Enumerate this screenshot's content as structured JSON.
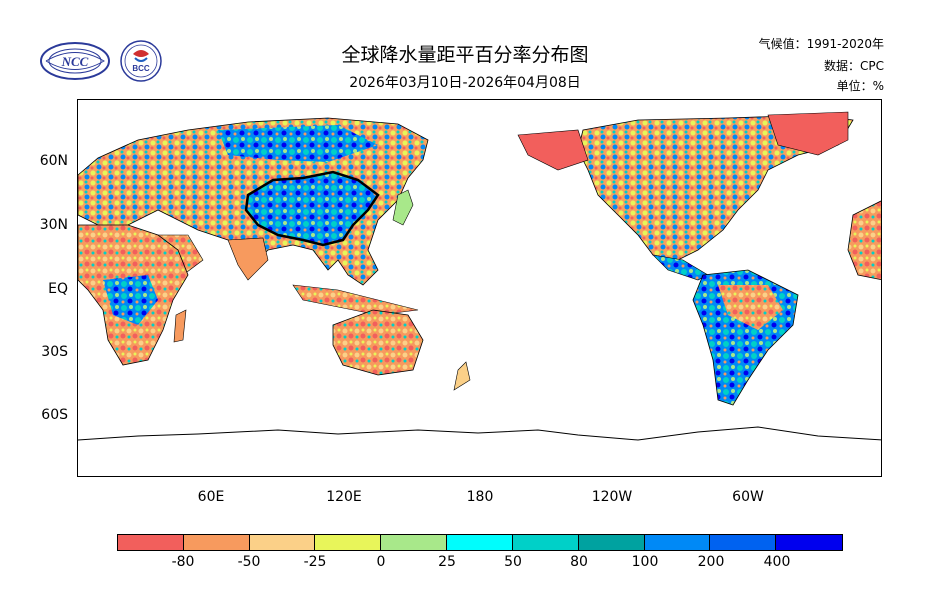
{
  "header": {
    "title": "全球降水量距平百分率分布图",
    "subtitle": "2026年03月10日-2026年04月08日",
    "climatology": "气候值：1991-2020年",
    "source": "数据：CPC",
    "unit": "单位：%"
  },
  "logos": {
    "ncc": "NCC",
    "bcc": "BCC"
  },
  "axes": {
    "y_ticks": [
      "60N",
      "30N",
      "EQ",
      "30S",
      "60S"
    ],
    "x_ticks": [
      "60E",
      "120E",
      "180",
      "120W",
      "60W"
    ]
  },
  "legend": {
    "labels": [
      "-80",
      "-50",
      "-25",
      "0",
      "25",
      "50",
      "80",
      "100",
      "200",
      "400"
    ],
    "colors": [
      "#f25f5c",
      "#f79a5e",
      "#fbd088",
      "#e8f55a",
      "#a8e88a",
      "#00fdfd",
      "#00d0c8",
      "#00a2a0",
      "#0089f6",
      "#0062f0",
      "#0000ee"
    ]
  },
  "map": {
    "projection": "equirectangular, centered ~150E",
    "highlighted_region": "China"
  }
}
